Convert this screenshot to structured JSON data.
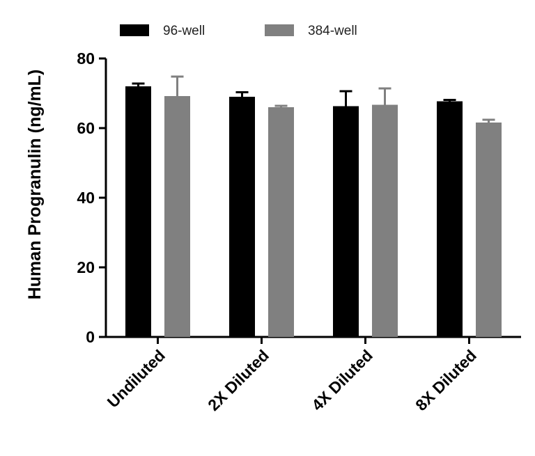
{
  "chart_data": {
    "type": "bar",
    "title": "",
    "xlabel": "",
    "ylabel": "Human Progranulin (ng/mL)",
    "categories": [
      "Undiluted",
      "2X Diluted",
      "4X Diluted",
      "8X Diluted"
    ],
    "ylim": [
      0,
      80
    ],
    "yticks": [
      0,
      20,
      40,
      60,
      80
    ],
    "series": [
      {
        "name": "96-well",
        "color": "#000000",
        "values": [
          72,
          69,
          66.3,
          67.7
        ],
        "errors": [
          0.8,
          1.3,
          4.3,
          0.4
        ]
      },
      {
        "name": "384-well",
        "color": "#808080",
        "values": [
          69.2,
          66,
          66.7,
          61.6
        ],
        "errors": [
          5.6,
          0.4,
          4.7,
          0.8
        ]
      }
    ],
    "legend": "top"
  }
}
